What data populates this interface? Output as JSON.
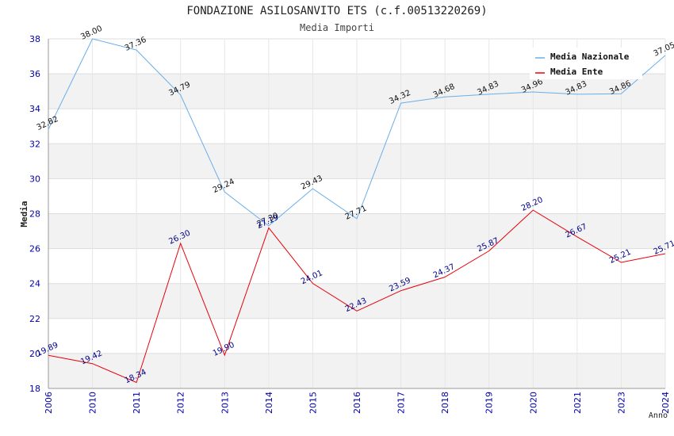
{
  "chart_data": {
    "type": "line",
    "title": "FONDAZIONE ASILOSANVITO ETS (c.f.00513220269)",
    "subtitle": "Media Importi",
    "xlabel": "Anno",
    "ylabel": "Media",
    "ylim": [
      18,
      38
    ],
    "yticks": [
      "18",
      "20",
      "22",
      "24",
      "26",
      "28",
      "30",
      "32",
      "34",
      "36",
      "38"
    ],
    "grid": true,
    "legend_position": "top-right",
    "categories": [
      "2006",
      "2010",
      "2011",
      "2012",
      "2013",
      "2014",
      "2015",
      "2016",
      "2017",
      "2018",
      "2019",
      "2020",
      "2021",
      "2023",
      "2024"
    ],
    "series": [
      {
        "name": "Media Nazionale",
        "color": "#6aaee8",
        "values": [
          32.82,
          38.0,
          37.36,
          34.79,
          29.24,
          27.3,
          29.43,
          27.71,
          34.32,
          34.68,
          34.83,
          34.96,
          34.83,
          34.86,
          37.05
        ],
        "labels": [
          "32.82",
          "38.00",
          "37.36",
          "34.79",
          "29.24",
          "27.30",
          "29.43",
          "27.71",
          "34.32",
          "34.68",
          "34.83",
          "34.96",
          "34.83",
          "34.86",
          "37.05"
        ]
      },
      {
        "name": "Media Ente",
        "color": "#e8000b",
        "values": [
          19.89,
          19.42,
          18.34,
          26.3,
          19.9,
          27.19,
          24.01,
          22.43,
          23.59,
          24.37,
          25.87,
          28.2,
          26.67,
          25.21,
          25.71
        ],
        "labels": [
          "19.89",
          "19.42",
          "18.34",
          "26.30",
          "19.90",
          "27.19",
          "24.01",
          "22.43",
          "23.59",
          "24.37",
          "25.87",
          "28.20",
          "26.67",
          "25.21",
          "25.71"
        ]
      }
    ]
  }
}
